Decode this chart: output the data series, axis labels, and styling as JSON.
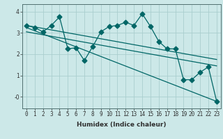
{
  "xlabel": "Humidex (Indice chaleur)",
  "ylabel": "",
  "bg_color": "#cce8e8",
  "grid_color": "#aacece",
  "line_color": "#006666",
  "xlim": [
    -0.5,
    23.5
  ],
  "ylim": [
    -0.55,
    4.35
  ],
  "yticks": [
    0,
    1,
    2,
    3,
    4
  ],
  "ytick_labels": [
    "-0",
    "1",
    "2",
    "3",
    "4"
  ],
  "xticks": [
    0,
    1,
    2,
    3,
    4,
    5,
    6,
    7,
    8,
    9,
    10,
    11,
    12,
    13,
    14,
    15,
    16,
    17,
    18,
    19,
    20,
    21,
    22,
    23
  ],
  "line1_x": [
    0,
    1,
    2,
    3,
    4,
    5,
    6,
    7,
    8,
    9,
    10,
    11,
    12,
    13,
    14,
    15,
    16,
    17,
    18,
    19,
    20,
    21,
    22,
    23
  ],
  "line1_y": [
    3.35,
    3.25,
    3.05,
    3.35,
    3.75,
    2.25,
    2.3,
    1.7,
    2.35,
    3.05,
    3.3,
    3.35,
    3.5,
    3.35,
    3.9,
    3.3,
    2.6,
    2.25,
    2.25,
    0.8,
    0.8,
    1.15,
    1.4,
    -0.22
  ],
  "line2_x": [
    0,
    23
  ],
  "line2_y": [
    3.35,
    1.75
  ],
  "line3_x": [
    0,
    23
  ],
  "line3_y": [
    3.05,
    1.45
  ],
  "line4_x": [
    0,
    23
  ],
  "line4_y": [
    3.25,
    -0.22
  ],
  "marker_size": 3.5,
  "linewidth": 0.9,
  "font_size_label": 6.5,
  "font_size_tick": 5.5
}
